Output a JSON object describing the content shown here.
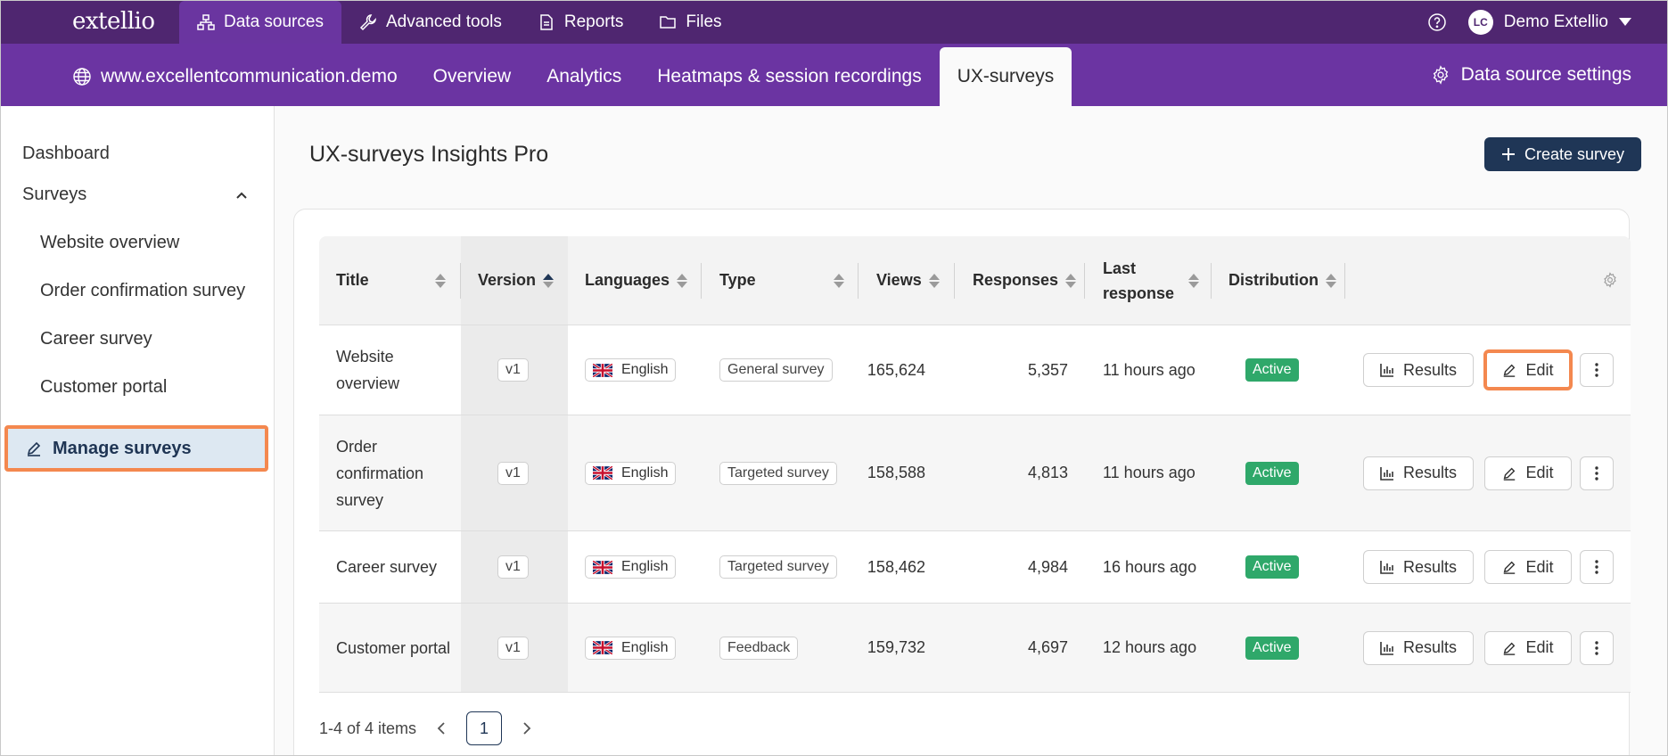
{
  "app": {
    "logo": "extellio"
  },
  "topnav": [
    {
      "label": "Data sources",
      "icon": "sitemap-icon",
      "active": true
    },
    {
      "label": "Advanced tools",
      "icon": "wrench-icon",
      "active": false
    },
    {
      "label": "Reports",
      "icon": "document-icon",
      "active": false
    },
    {
      "label": "Files",
      "icon": "folder-icon",
      "active": false
    }
  ],
  "user": {
    "initials": "LC",
    "name": "Demo Extellio"
  },
  "subnav": {
    "domain": "www.excellentcommunication.demo",
    "items": [
      "Overview",
      "Analytics",
      "Heatmaps & session recordings",
      "UX-surveys"
    ],
    "settings": "Data source settings"
  },
  "sidebar": {
    "dashboard": "Dashboard",
    "surveys": "Surveys",
    "sub_items": [
      "Website overview",
      "Order confirmation survey",
      "Career survey",
      "Customer portal"
    ],
    "manage": "Manage surveys"
  },
  "main": {
    "title": "UX-surveys Insights Pro",
    "create_button": "Create survey"
  },
  "table": {
    "headers": {
      "title": "Title",
      "version": "Version",
      "languages": "Languages",
      "type": "Type",
      "views": "Views",
      "responses": "Responses",
      "last_response_1": "Last",
      "last_response_2": "response",
      "distribution": "Distribution"
    },
    "results_label": "Results",
    "edit_label": "Edit",
    "rows": [
      {
        "title": "Website overview",
        "version": "v1",
        "language": "English",
        "type": "General survey",
        "views": "165,624",
        "responses": "5,357",
        "last_response": "11 hours ago",
        "distribution": "Active"
      },
      {
        "title": "Order confirmation survey",
        "version": "v1",
        "language": "English",
        "type": "Targeted survey",
        "views": "158,588",
        "responses": "4,813",
        "last_response": "11 hours ago",
        "distribution": "Active"
      },
      {
        "title": "Career survey",
        "version": "v1",
        "language": "English",
        "type": "Targeted survey",
        "views": "158,462",
        "responses": "4,984",
        "last_response": "16 hours ago",
        "distribution": "Active"
      },
      {
        "title": "Customer portal",
        "version": "v1",
        "language": "English",
        "type": "Feedback",
        "views": "159,732",
        "responses": "4,697",
        "last_response": "12 hours ago",
        "distribution": "Active"
      }
    ]
  },
  "pagination": {
    "summary": "1-4 of 4 items",
    "current_page": "1"
  },
  "colors": {
    "topbar": "#4f2670",
    "subbar": "#6b34a2",
    "accent": "#1f3656",
    "active_badge": "#2fa86a",
    "highlight": "#f4884f"
  }
}
